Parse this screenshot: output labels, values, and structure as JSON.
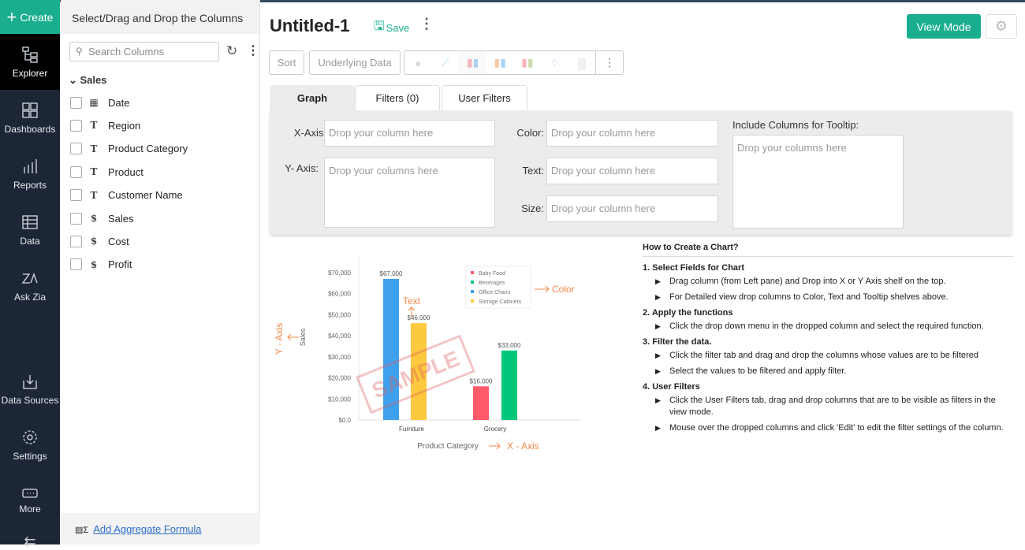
{
  "nav": {
    "create": "Create",
    "items": [
      {
        "label": "Explorer",
        "icon": "explorer-icon"
      },
      {
        "label": "Dashboards",
        "icon": "dashboards-icon"
      },
      {
        "label": "Reports",
        "icon": "reports-icon"
      },
      {
        "label": "Data",
        "icon": "data-icon"
      },
      {
        "label": "Ask Zia",
        "icon": "zia-icon"
      },
      {
        "label": "Data Sources",
        "icon": "data-sources-icon"
      },
      {
        "label": "Settings",
        "icon": "settings-icon"
      },
      {
        "label": "More",
        "icon": "more-icon"
      }
    ]
  },
  "columns": {
    "header": "Select/Drag and Drop the Columns",
    "search_placeholder": "Search Columns",
    "group": "Sales",
    "items": [
      {
        "label": "Date",
        "type": "date"
      },
      {
        "label": "Region",
        "type": "text"
      },
      {
        "label": "Product Category",
        "type": "text"
      },
      {
        "label": "Product",
        "type": "text"
      },
      {
        "label": "Customer Name",
        "type": "text"
      },
      {
        "label": "Sales",
        "type": "number"
      },
      {
        "label": "Cost",
        "type": "number"
      },
      {
        "label": "Profit",
        "type": "number"
      }
    ],
    "footer": "Add Aggregate Formula"
  },
  "header": {
    "title": "Untitled-1",
    "save": "Save",
    "view_mode": "View Mode"
  },
  "toolbar": {
    "sort": "Sort",
    "underlying": "Underlying Data"
  },
  "tabs": [
    "Graph",
    "Filters  (0)",
    "User Filters"
  ],
  "shelf": {
    "x_label": "X-Axis:",
    "y_label": "Y- Axis:",
    "color_label": "Color:",
    "text_label": "Text:",
    "size_label": "Size:",
    "tooltip_label": "Include Columns for Tooltip:",
    "drop_column": "Drop your column here",
    "drop_columns": "Drop your columns here"
  },
  "sample": {
    "watermark": "SAMPLE",
    "annot_color": "Color",
    "annot_text": "Text",
    "annot_y": "Y - Axis",
    "annot_x": "X - Axis",
    "colors": {
      "accent": "#1aae8f",
      "annotation": "#f5884a"
    }
  },
  "chart_data": {
    "type": "bar",
    "categories": [
      "Furniture",
      "Grocery"
    ],
    "xlabel": "Product Category",
    "ylabel": "Sales",
    "ylim": [
      0,
      70000
    ],
    "yticks": [
      "$0.0",
      "$10,000",
      "$20,000",
      "$30,000",
      "$40,000",
      "$50,000",
      "$60,000",
      "$70,000"
    ],
    "series": [
      {
        "name": "Baby Food",
        "color": "#ff5a6a",
        "values": [
          null,
          16000
        ],
        "labels": [
          "",
          "$16,000"
        ]
      },
      {
        "name": "Beverages",
        "color": "#00c77a",
        "values": [
          null,
          33000
        ],
        "labels": [
          "",
          "$33,000"
        ]
      },
      {
        "name": "Office Chairs",
        "color": "#3fa1ee",
        "values": [
          67000,
          null
        ],
        "labels": [
          "$67,000",
          ""
        ]
      },
      {
        "name": "Storage Cabinets",
        "color": "#fdc93f",
        "values": [
          46000,
          null
        ],
        "labels": [
          "$46,000",
          ""
        ]
      }
    ],
    "legend": "top-right"
  },
  "howto": {
    "title": "How to Create a Chart?",
    "steps": [
      {
        "title": "1. Select Fields for Chart",
        "items": [
          "Drag column (from Left pane) and Drop into X or Y Axis shelf on the top.",
          "For Detailed view drop columns to Color, Text and Tooltip shelves above."
        ]
      },
      {
        "title": "2. Apply the functions",
        "items": [
          "Click the drop down menu in the dropped column and select the required function."
        ]
      },
      {
        "title": "3. Filter the data.",
        "items": [
          "Click the filter tab and drag and drop the columns whose values are to be filtered",
          "Select the values to be filtered and apply filter."
        ]
      },
      {
        "title": "4. User Filters",
        "items": [
          "Click the User Filters tab, drag and drop columns that are to be visible as filters in the view mode.",
          "Mouse over the dropped columns and click 'Edit' to edit the filter settings of the column."
        ]
      }
    ]
  }
}
